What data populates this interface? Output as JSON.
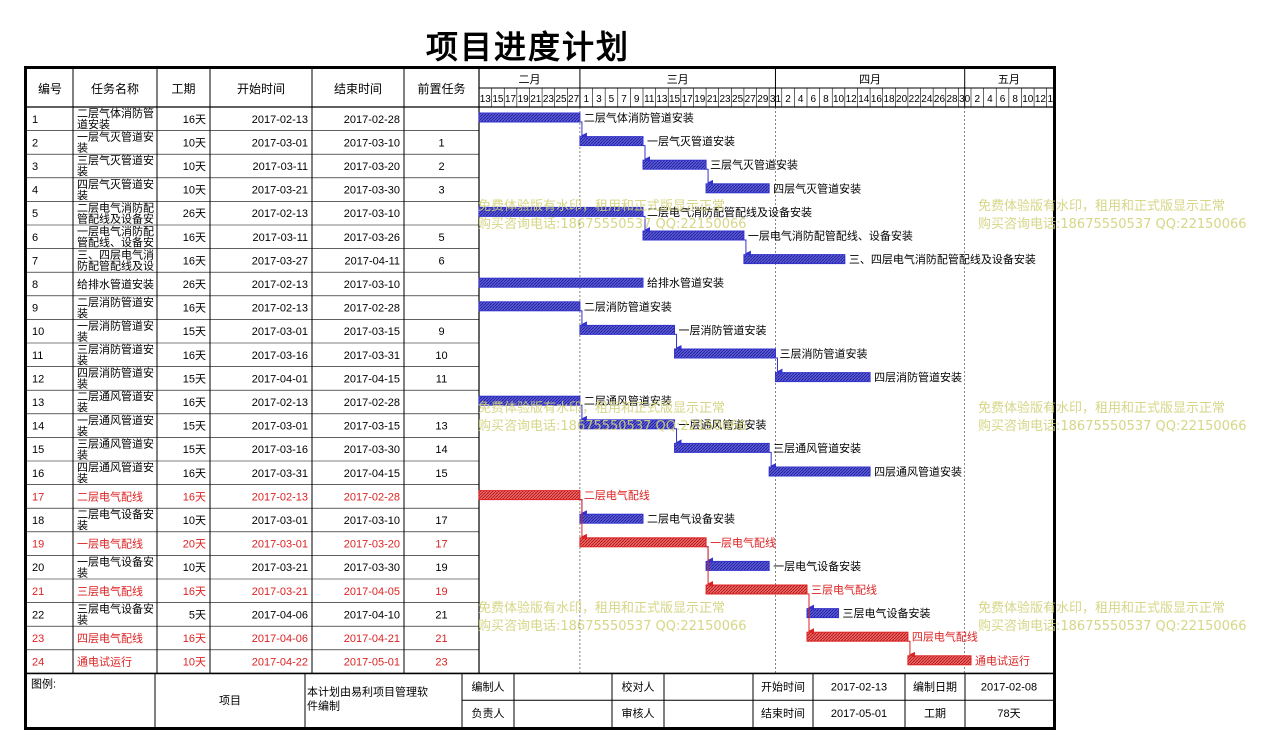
{
  "title": "项目进度计划",
  "columns": [
    "编号",
    "任务名称",
    "工期",
    "开始时间",
    "结束时间",
    "前置任务"
  ],
  "months": [
    {
      "label": "二月",
      "days": [
        "13",
        "15",
        "17",
        "19",
        "21",
        "23",
        "25",
        "27"
      ]
    },
    {
      "label": "三月",
      "days": [
        "1",
        "3",
        "5",
        "7",
        "9",
        "11",
        "13",
        "15",
        "17",
        "19",
        "21",
        "23",
        "25",
        "27",
        "29",
        "31"
      ]
    },
    {
      "label": "四月",
      "days": [
        "2",
        "4",
        "6",
        "8",
        "10",
        "12",
        "14",
        "16",
        "18",
        "20",
        "22",
        "24",
        "26",
        "28",
        "30"
      ]
    },
    {
      "label": "五月",
      "days": [
        "2",
        "4",
        "6",
        "8",
        "10",
        "12",
        "14"
      ]
    }
  ],
  "tasks": [
    {
      "id": "1",
      "name": "二层气体消防管道安装",
      "dur": "16天",
      "start": "2017-02-13",
      "end": "2017-02-28",
      "pred": "",
      "color": "blue",
      "critical": false
    },
    {
      "id": "2",
      "name": "一层气灭管道安装",
      "dur": "10天",
      "start": "2017-03-01",
      "end": "2017-03-10",
      "pred": "1",
      "color": "blue",
      "critical": false
    },
    {
      "id": "3",
      "name": "三层气灭管道安装",
      "dur": "10天",
      "start": "2017-03-11",
      "end": "2017-03-20",
      "pred": "2",
      "color": "blue",
      "critical": false
    },
    {
      "id": "4",
      "name": "四层气灭管道安装",
      "dur": "10天",
      "start": "2017-03-21",
      "end": "2017-03-30",
      "pred": "3",
      "color": "blue",
      "critical": false
    },
    {
      "id": "5",
      "name": "二层电气消防配管配线及设备安装",
      "dur": "26天",
      "start": "2017-02-13",
      "end": "2017-03-10",
      "pred": "",
      "color": "blue",
      "critical": false
    },
    {
      "id": "6",
      "name": "一层电气消防配管配线、设备安装",
      "dur": "16天",
      "start": "2017-03-11",
      "end": "2017-03-26",
      "pred": "5",
      "color": "blue",
      "critical": false
    },
    {
      "id": "7",
      "name": "三、四层电气消防配管配线及设备安装",
      "dur": "16天",
      "start": "2017-03-27",
      "end": "2017-04-11",
      "pred": "6",
      "color": "blue",
      "critical": false
    },
    {
      "id": "8",
      "name": "给排水管道安装",
      "dur": "26天",
      "start": "2017-02-13",
      "end": "2017-03-10",
      "pred": "",
      "color": "blue",
      "critical": false
    },
    {
      "id": "9",
      "name": "二层消防管道安装",
      "dur": "16天",
      "start": "2017-02-13",
      "end": "2017-02-28",
      "pred": "",
      "color": "blue",
      "critical": false
    },
    {
      "id": "10",
      "name": "一层消防管道安装",
      "dur": "15天",
      "start": "2017-03-01",
      "end": "2017-03-15",
      "pred": "9",
      "color": "blue",
      "critical": false
    },
    {
      "id": "11",
      "name": "三层消防管道安装",
      "dur": "16天",
      "start": "2017-03-16",
      "end": "2017-03-31",
      "pred": "10",
      "color": "blue",
      "critical": false
    },
    {
      "id": "12",
      "name": "四层消防管道安装",
      "dur": "15天",
      "start": "2017-04-01",
      "end": "2017-04-15",
      "pred": "11",
      "color": "blue",
      "critical": false
    },
    {
      "id": "13",
      "name": "二层通风管道安装",
      "dur": "16天",
      "start": "2017-02-13",
      "end": "2017-02-28",
      "pred": "",
      "color": "blue",
      "critical": false
    },
    {
      "id": "14",
      "name": "一层通风管道安装",
      "dur": "15天",
      "start": "2017-03-01",
      "end": "2017-03-15",
      "pred": "13",
      "color": "blue",
      "critical": false
    },
    {
      "id": "15",
      "name": "三层通风管道安装",
      "dur": "15天",
      "start": "2017-03-16",
      "end": "2017-03-30",
      "pred": "14",
      "color": "blue",
      "critical": false
    },
    {
      "id": "16",
      "name": "四层通风管道安装",
      "dur": "16天",
      "start": "2017-03-31",
      "end": "2017-04-15",
      "pred": "15",
      "color": "blue",
      "critical": false
    },
    {
      "id": "17",
      "name": "二层电气配线",
      "dur": "16天",
      "start": "2017-02-13",
      "end": "2017-02-28",
      "pred": "",
      "color": "red",
      "critical": true
    },
    {
      "id": "18",
      "name": "二层电气设备安装",
      "dur": "10天",
      "start": "2017-03-01",
      "end": "2017-03-10",
      "pred": "17",
      "color": "blue",
      "critical": false
    },
    {
      "id": "19",
      "name": "一层电气配线",
      "dur": "20天",
      "start": "2017-03-01",
      "end": "2017-03-20",
      "pred": "17",
      "color": "red",
      "critical": true
    },
    {
      "id": "20",
      "name": "一层电气设备安装",
      "dur": "10天",
      "start": "2017-03-21",
      "end": "2017-03-30",
      "pred": "19",
      "color": "blue",
      "critical": false
    },
    {
      "id": "21",
      "name": "三层电气配线",
      "dur": "16天",
      "start": "2017-03-21",
      "end": "2017-04-05",
      "pred": "19",
      "color": "red",
      "critical": true
    },
    {
      "id": "22",
      "name": "三层电气设备安装",
      "dur": "5天",
      "start": "2017-04-06",
      "end": "2017-04-10",
      "pred": "21",
      "color": "blue",
      "critical": false
    },
    {
      "id": "23",
      "name": "四层电气配线",
      "dur": "16天",
      "start": "2017-04-06",
      "end": "2017-04-21",
      "pred": "21",
      "color": "red",
      "critical": true
    },
    {
      "id": "24",
      "name": "通电试运行",
      "dur": "10天",
      "start": "2017-04-22",
      "end": "2017-05-01",
      "pred": "23",
      "color": "red",
      "critical": true
    }
  ],
  "footer": {
    "legend_label": "图例:",
    "project_label": "项目",
    "note": "本计划由易利项目管理软件编制",
    "editor_label": "编制人",
    "editor_value": "",
    "checker_label": "校对人",
    "checker_value": "",
    "start_label": "开始时间",
    "start_value": "2017-02-13",
    "date_label": "编制日期",
    "date_value": "2017-02-08",
    "owner_label": "负责人",
    "owner_value": "",
    "reviewer_label": "审核人",
    "reviewer_value": "",
    "end_label": "结束时间",
    "end_value": "2017-05-01",
    "period_label": "工期",
    "period_value": "78天"
  },
  "watermark": {
    "line1": "免费体验版有水印，租用和正式版显示正常",
    "line2": "购买咨询电话:18675550537 QQ:22150066"
  },
  "chart_data": {
    "type": "gantt",
    "title": "项目进度计划",
    "x_axis": {
      "start": "2017-02-13",
      "end": "2017-05-15",
      "unit": "day",
      "tick_step_days": 2
    },
    "series": [
      {
        "name": "",
        "color": "#3333cc",
        "tasks": [
          "1",
          "2",
          "3",
          "4",
          "5",
          "6",
          "7",
          "8",
          "9",
          "10",
          "11",
          "12",
          "13",
          "14",
          "15",
          "16",
          "18",
          "20",
          "22"
        ]
      },
      {
        "name": "",
        "color": "#dd2222",
        "tasks": [
          "17",
          "19",
          "21",
          "23",
          "24"
        ]
      }
    ],
    "bars": [
      {
        "task": "1",
        "start": "2017-02-13",
        "end": "2017-02-28"
      },
      {
        "task": "2",
        "start": "2017-03-01",
        "end": "2017-03-10"
      },
      {
        "task": "3",
        "start": "2017-03-11",
        "end": "2017-03-20"
      },
      {
        "task": "4",
        "start": "2017-03-21",
        "end": "2017-03-30"
      },
      {
        "task": "5",
        "start": "2017-02-13",
        "end": "2017-03-10"
      },
      {
        "task": "6",
        "start": "2017-03-11",
        "end": "2017-03-26"
      },
      {
        "task": "7",
        "start": "2017-03-27",
        "end": "2017-04-11"
      },
      {
        "task": "8",
        "start": "2017-02-13",
        "end": "2017-03-10"
      },
      {
        "task": "9",
        "start": "2017-02-13",
        "end": "2017-02-28"
      },
      {
        "task": "10",
        "start": "2017-03-01",
        "end": "2017-03-15"
      },
      {
        "task": "11",
        "start": "2017-03-16",
        "end": "2017-03-31"
      },
      {
        "task": "12",
        "start": "2017-04-01",
        "end": "2017-04-15"
      },
      {
        "task": "13",
        "start": "2017-02-13",
        "end": "2017-02-28"
      },
      {
        "task": "14",
        "start": "2017-03-01",
        "end": "2017-03-15"
      },
      {
        "task": "15",
        "start": "2017-03-16",
        "end": "2017-03-30"
      },
      {
        "task": "16",
        "start": "2017-03-31",
        "end": "2017-04-15"
      },
      {
        "task": "17",
        "start": "2017-02-13",
        "end": "2017-02-28"
      },
      {
        "task": "18",
        "start": "2017-03-01",
        "end": "2017-03-10"
      },
      {
        "task": "19",
        "start": "2017-03-01",
        "end": "2017-03-20"
      },
      {
        "task": "20",
        "start": "2017-03-21",
        "end": "2017-03-30"
      },
      {
        "task": "21",
        "start": "2017-03-21",
        "end": "2017-04-05"
      },
      {
        "task": "22",
        "start": "2017-04-06",
        "end": "2017-04-10"
      },
      {
        "task": "23",
        "start": "2017-04-06",
        "end": "2017-04-21"
      },
      {
        "task": "24",
        "start": "2017-04-22",
        "end": "2017-05-01"
      }
    ],
    "dependencies": [
      [
        "1",
        "2"
      ],
      [
        "2",
        "3"
      ],
      [
        "3",
        "4"
      ],
      [
        "5",
        "6"
      ],
      [
        "6",
        "7"
      ],
      [
        "9",
        "10"
      ],
      [
        "10",
        "11"
      ],
      [
        "11",
        "12"
      ],
      [
        "13",
        "14"
      ],
      [
        "14",
        "15"
      ],
      [
        "15",
        "16"
      ],
      [
        "17",
        "18"
      ],
      [
        "17",
        "19"
      ],
      [
        "19",
        "20"
      ],
      [
        "19",
        "21"
      ],
      [
        "21",
        "22"
      ],
      [
        "21",
        "23"
      ],
      [
        "23",
        "24"
      ]
    ],
    "grid": true
  }
}
